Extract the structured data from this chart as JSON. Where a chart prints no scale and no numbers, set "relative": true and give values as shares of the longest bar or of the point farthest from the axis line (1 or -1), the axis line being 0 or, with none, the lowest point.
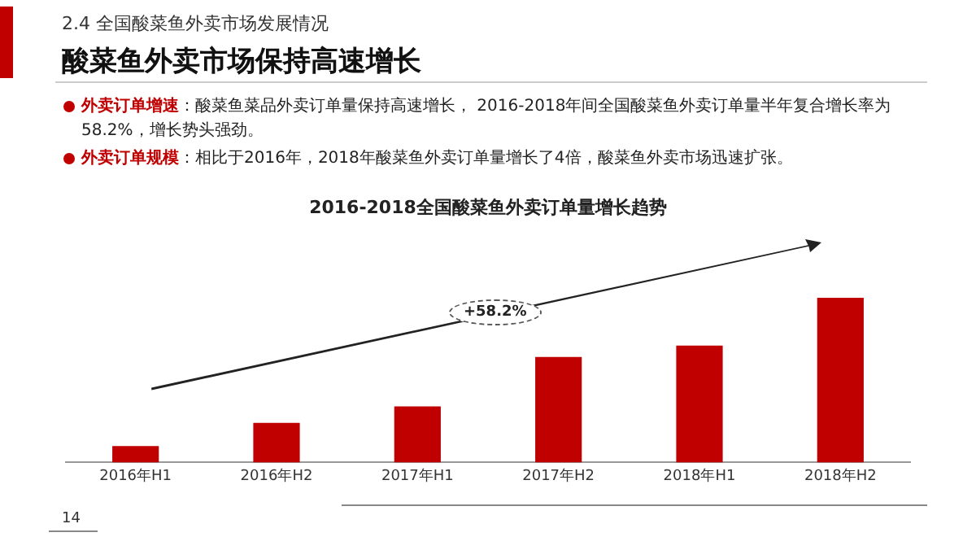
{
  "chart_data": {
    "type": "bar",
    "title": "2016-2018全国酸菜鱼外卖订单量增长趋势",
    "categories": [
      "2016年H1",
      "2016年H2",
      "2017年H1",
      "2017年H2",
      "2018年H1",
      "2018年H2"
    ],
    "values": [
      0.1,
      0.24,
      0.34,
      0.64,
      0.71,
      1
    ],
    "color": "#c00000",
    "relative": true,
    "grid": false,
    "legend": false,
    "annotations": [
      "2.4 全国酸菜鱼外卖市场发展情况",
      "酸菜鱼外卖市场保持高速增长",
      "外卖订单增速",
      "：酸菜鱼菜品外卖订单量保持高速增长， 2016-2018年间全国酸菜鱼外卖订单量半年复合增长率为58.2%，增长势头强劲。",
      "外卖订单规模",
      "：相比于2016年，2018年酸菜鱼外卖订单量增长了4倍，酸菜鱼外卖市场迅速扩张。",
      "+58.2%",
      "14"
    ]
  }
}
